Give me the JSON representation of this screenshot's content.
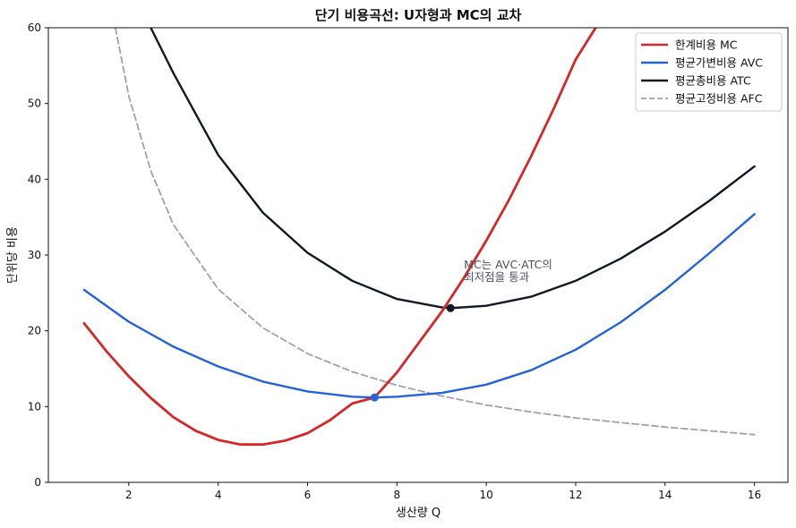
{
  "chart_data": {
    "type": "line",
    "title": "단기 비용곡선: U자형과 MC의 교차",
    "xlabel": "생산량 Q",
    "ylabel": "단위당 비용",
    "xlim": [
      0.2,
      16.75
    ],
    "ylim": [
      0,
      60
    ],
    "xticks": [
      2,
      4,
      6,
      8,
      10,
      12,
      14,
      16
    ],
    "yticks": [
      0,
      10,
      20,
      30,
      40,
      50,
      60
    ],
    "grid": false,
    "legend_position": "top-right",
    "series": [
      {
        "name": "한계비용 MC",
        "color": "#d62728",
        "style": "solid",
        "x": [
          1,
          1.5,
          2,
          2.5,
          3,
          3.5,
          4,
          4.5,
          5,
          5.5,
          6,
          6.5,
          7,
          7.5,
          8,
          8.5,
          9,
          9.5,
          10,
          10.5,
          11,
          11.5,
          12,
          12.5
        ],
        "y": [
          21,
          17.3,
          14,
          11.1,
          8.6,
          6.8,
          5.6,
          5.0,
          5.0,
          5.5,
          6.5,
          8.2,
          10.4,
          11.2,
          14.5,
          18.5,
          22.5,
          27.0,
          31.9,
          37.2,
          43.0,
          49.2,
          55.8,
          60.5
        ]
      },
      {
        "name": "평균가변비용 AVC",
        "color": "#2563d9",
        "style": "solid",
        "x": [
          1,
          2,
          3,
          4,
          5,
          6,
          7,
          7.5,
          8,
          9,
          10,
          11,
          12,
          13,
          14,
          15,
          16
        ],
        "y": [
          25.4,
          21.2,
          17.9,
          15.3,
          13.3,
          12.0,
          11.3,
          11.2,
          11.3,
          11.8,
          12.9,
          14.8,
          17.5,
          21.1,
          25.4,
          30.3,
          35.4
        ]
      },
      {
        "name": "평균총비용 ATC",
        "color": "#111827",
        "style": "solid",
        "x": [
          2.45,
          3,
          4,
          5,
          6,
          7,
          8,
          9,
          9.2,
          10,
          11,
          12,
          13,
          14,
          15,
          16
        ],
        "y": [
          60.5,
          54.0,
          43.2,
          35.6,
          30.3,
          26.6,
          24.2,
          23.1,
          23.0,
          23.3,
          24.5,
          26.6,
          29.5,
          33.1,
          37.2,
          41.7
        ]
      },
      {
        "name": "평균고정비용 AFC",
        "color": "#a0a0ae",
        "style": "dashed",
        "x": [
          1.7,
          2,
          2.5,
          3,
          4,
          5,
          6,
          7,
          8,
          9,
          10,
          11,
          12,
          13,
          14,
          15,
          16
        ],
        "y": [
          60,
          51,
          41,
          34,
          25.5,
          20.4,
          17.0,
          14.6,
          12.8,
          11.4,
          10.2,
          9.3,
          8.5,
          7.9,
          7.3,
          6.8,
          6.3
        ]
      }
    ],
    "markers": [
      {
        "x": 7.5,
        "y": 11.2,
        "color": "#2563d9"
      },
      {
        "x": 9.2,
        "y": 23.0,
        "color": "#111827"
      }
    ],
    "annotation": {
      "lines": [
        "MC는 AVC·ATC의",
        "최저점을 통과"
      ],
      "x": 9.5,
      "y": 28.2
    }
  }
}
